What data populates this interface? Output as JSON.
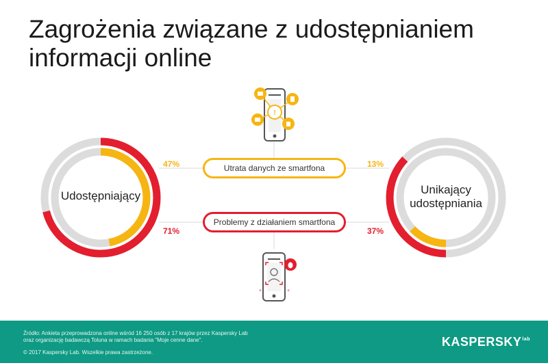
{
  "title": "Zagrożenia związane z udostępnianiem informacji online",
  "groups": {
    "left": "Udostępniający",
    "right": "Unikający udostępniania"
  },
  "metrics": [
    {
      "label": "Utrata danych ze smartfona",
      "color": "#f6b512",
      "sharers_pct": "47%",
      "avoiders_pct": "13%",
      "sharers_value": 47,
      "avoiders_value": 13
    },
    {
      "label": "Problemy z działaniem smartfona",
      "color": "#e31e2e",
      "sharers_pct": "71%",
      "avoiders_pct": "37%",
      "sharers_value": 71,
      "avoiders_value": 37
    }
  ],
  "colors": {
    "track": "#dcdcdc",
    "yellow": "#f6b512",
    "red": "#e31e2e",
    "footer": "#0e9a84"
  },
  "icons": [
    "smartphone-network-icon",
    "smartphone-bug-icon"
  ],
  "footer": {
    "source": "Źródło: Ankieta przeprowadzona online wśród 16 250 osób z 17 krajów przez Kaspersky Lab\noraz organizację badawczą Toluna w ramach badania \"Moje cenne dane\".",
    "copyright": "© 2017 Kaspersky Lab. Wszelkie prawa zastrzeżone.",
    "logo": "KASPERSKY",
    "logo_suffix": "lab"
  }
}
